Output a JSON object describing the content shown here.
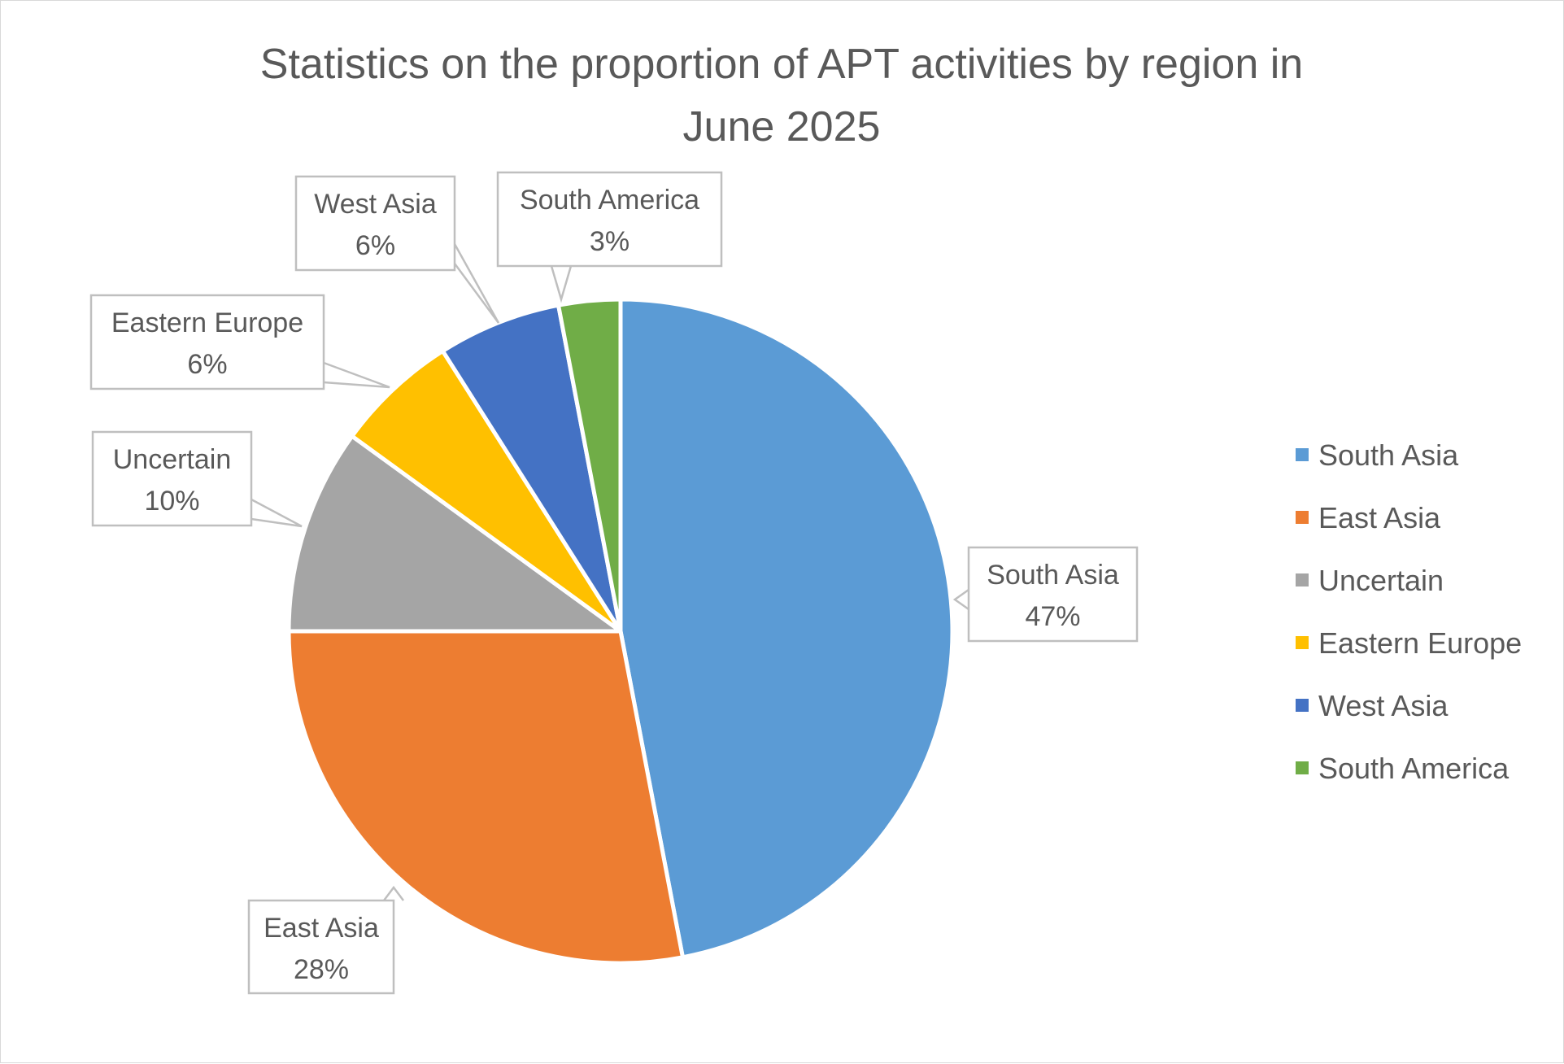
{
  "chart_data": {
    "type": "pie",
    "title": "Statistics on the proportion of APT activities by region in June 2025",
    "title_lines": [
      "Statistics on the proportion of APT activities by region in",
      "June 2025"
    ],
    "start_angle_deg": 0,
    "direction": "clockwise",
    "slices": [
      {
        "label": "South Asia",
        "value": 47,
        "value_label": "47%",
        "color": "#5B9BD5"
      },
      {
        "label": "East Asia",
        "value": 28,
        "value_label": "28%",
        "color": "#ED7D31"
      },
      {
        "label": "Uncertain",
        "value": 10,
        "value_label": "10%",
        "color": "#A5A5A5"
      },
      {
        "label": "Eastern Europe",
        "value": 6,
        "value_label": "6%",
        "color": "#FFC000"
      },
      {
        "label": "West Asia",
        "value": 6,
        "value_label": "6%",
        "color": "#4472C4"
      },
      {
        "label": "South America",
        "value": 3,
        "value_label": "3%",
        "color": "#70AD47"
      }
    ],
    "legend": {
      "position": "right",
      "entries": [
        "South Asia",
        "East Asia",
        "Uncertain",
        "Eastern Europe",
        "West Asia",
        "South America"
      ]
    },
    "data_labels": "callout"
  }
}
